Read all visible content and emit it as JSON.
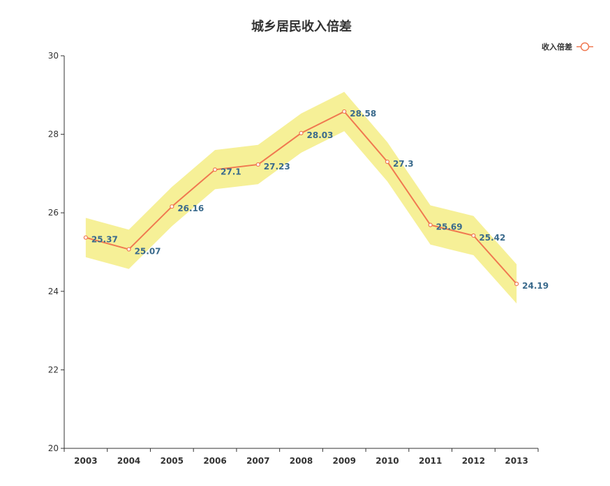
{
  "chart_data": {
    "type": "line",
    "title": "城乡居民收入倍差",
    "categories": [
      "2003",
      "2004",
      "2005",
      "2006",
      "2007",
      "2008",
      "2009",
      "2010",
      "2011",
      "2012",
      "2013"
    ],
    "series": [
      {
        "name": "收入倍差",
        "values": [
          25.37,
          25.07,
          26.16,
          27.1,
          27.23,
          28.03,
          28.58,
          27.3,
          25.69,
          25.42,
          24.19
        ],
        "labels": [
          "25.37",
          "25.07",
          "26.16",
          "27.1",
          "27.23",
          "28.03",
          "28.58",
          "27.3",
          "25.69",
          "25.42",
          "24.19"
        ],
        "band_halfwidth": 0.5
      }
    ],
    "ylim": [
      20,
      30
    ],
    "yticks": [
      "20",
      "22",
      "24",
      "26",
      "28",
      "30"
    ],
    "legend_position": "top-right",
    "grid": false,
    "colors": {
      "line": "#f07850",
      "band": "#f5ee8c",
      "label": "#3a6a8c",
      "axis": "#333333"
    }
  }
}
